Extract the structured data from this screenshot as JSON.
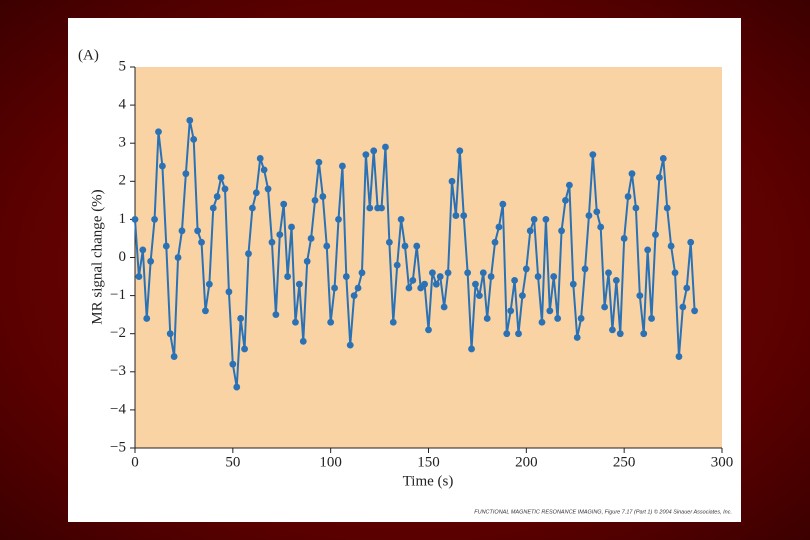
{
  "chart_data": {
    "type": "line",
    "panel_label": "(A)",
    "xlabel": "Time (s)",
    "ylabel": "MR signal change (%)",
    "credit": "FUNCTIONAL MAGNETIC RESONANCE IMAGING, Figure 7.17 (Part 1) © 2004 Sinauer Associates, Inc.",
    "background": "#f9d3a4",
    "x": [
      0,
      2,
      4,
      6,
      8,
      10,
      12,
      14,
      16,
      18,
      20,
      22,
      24,
      26,
      28,
      30,
      32,
      34,
      36,
      38,
      40,
      42,
      44,
      46,
      48,
      50,
      52,
      54,
      56,
      58,
      60,
      62,
      64,
      66,
      68,
      70,
      72,
      74,
      76,
      78,
      80,
      82,
      84,
      86,
      88,
      90,
      92,
      94,
      96,
      98,
      100,
      102,
      104,
      106,
      108,
      110,
      112,
      114,
      116,
      118,
      120,
      122,
      124,
      126,
      128,
      130,
      132,
      134,
      136,
      138,
      140,
      142,
      144,
      146,
      148,
      150,
      152,
      154,
      156,
      158,
      160,
      162,
      164,
      166,
      168,
      170,
      172,
      174,
      176,
      178,
      180,
      182,
      184,
      186,
      188,
      190,
      192,
      194,
      196,
      198,
      200,
      202,
      204,
      206,
      208,
      210,
      212,
      214,
      216,
      218,
      220,
      222,
      224,
      226,
      228,
      230,
      232,
      234,
      236,
      238,
      240,
      242,
      244,
      246,
      248,
      250,
      252,
      254,
      256,
      258,
      260,
      262,
      264,
      266,
      268,
      270,
      272,
      274,
      276,
      278,
      280,
      282,
      284,
      286
    ],
    "series": [
      {
        "name": "MR signal",
        "color": "#2a72b5",
        "values": [
          1.0,
          -0.5,
          0.2,
          -1.6,
          -0.1,
          1.0,
          3.3,
          2.4,
          0.3,
          -2.0,
          -2.6,
          0.0,
          0.7,
          2.2,
          3.6,
          3.1,
          0.7,
          0.4,
          -1.4,
          -0.7,
          1.3,
          1.6,
          2.1,
          1.8,
          -0.9,
          -2.8,
          -3.4,
          -1.6,
          -2.4,
          0.1,
          1.3,
          1.7,
          2.6,
          2.3,
          1.8,
          0.4,
          -1.5,
          0.6,
          1.4,
          -0.5,
          0.8,
          -1.7,
          -0.7,
          -2.2,
          -0.1,
          0.5,
          1.5,
          2.5,
          1.6,
          0.3,
          -1.7,
          -0.8,
          1.0,
          2.4,
          -0.5,
          -2.3,
          -1.0,
          -0.8,
          -0.4,
          2.7,
          1.3,
          2.8,
          1.3,
          1.3,
          2.9,
          0.4,
          -1.7,
          -0.2,
          1.0,
          0.3,
          -0.8,
          -0.6,
          0.3,
          -0.8,
          -0.7,
          -1.9,
          -0.4,
          -0.7,
          -0.5,
          -1.3,
          -0.4,
          2.0,
          1.1,
          2.8,
          1.1,
          -0.4,
          -2.4,
          -0.7,
          -1.0,
          -0.4,
          -1.6,
          -0.5,
          0.4,
          0.8,
          1.4,
          -2.0,
          -1.4,
          -0.6,
          -2.0,
          -1.0,
          -0.3,
          0.7,
          1.0,
          -0.5,
          -1.7,
          1.0,
          -1.4,
          -0.5,
          -1.6,
          0.7,
          1.5,
          1.9,
          -0.7,
          -2.1,
          -1.6,
          -0.3,
          1.1,
          2.7,
          1.2,
          0.8,
          -1.3,
          -0.4,
          -1.9,
          -0.6,
          -2.0,
          0.5,
          1.6,
          2.2,
          1.3,
          -1.0,
          -2.0,
          0.2,
          -1.6,
          0.6,
          2.1,
          2.6,
          1.3,
          0.3,
          -0.4,
          -2.6,
          -1.3,
          -0.8,
          0.4,
          -1.4
        ]
      }
    ],
    "xlim": [
      0,
      300
    ],
    "xticks": [
      0,
      50,
      100,
      150,
      200,
      250,
      300
    ],
    "ylim": [
      -5,
      5
    ],
    "yticks": [
      {
        "value": -5,
        "label": "−5"
      },
      {
        "value": -4,
        "label": "−4"
      },
      {
        "value": -3,
        "label": "−3"
      },
      {
        "value": -2,
        "label": "−2"
      },
      {
        "value": -1,
        "label": "−1"
      },
      0,
      1,
      2,
      3,
      4,
      5
    ]
  }
}
